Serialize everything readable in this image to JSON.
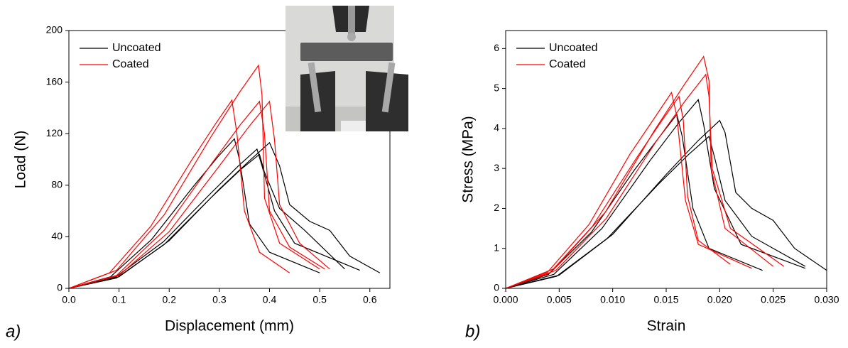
{
  "chart_data": [
    {
      "type": "line",
      "panel_label": "a)",
      "xlabel": "Displacement (mm)",
      "ylabel": "Load (N)",
      "xlim": [
        0,
        0.64
      ],
      "ylim": [
        0,
        200
      ],
      "xticks": [
        {
          "value": 0,
          "label": "0.0"
        },
        0.1,
        0.2,
        0.3,
        0.4,
        0.5,
        0.6
      ],
      "yticks": [
        0,
        40,
        80,
        120,
        160,
        200
      ],
      "legend": "upper left",
      "series": [
        {
          "name": "Uncoated",
          "color": "#000000",
          "curves": [
            {
              "x": [
                0,
                0.083,
                0.165,
                0.248,
                0.297,
                0.33,
                0.34,
                0.36,
                0.4,
                0.5
              ],
              "y": [
                0,
                9,
                38,
                79,
                102,
                116,
                100,
                50,
                28,
                12
              ]
            },
            {
              "x": [
                0,
                0.094,
                0.188,
                0.281,
                0.338,
                0.375,
                0.385,
                0.41,
                0.45,
                0.58
              ],
              "y": [
                0,
                9,
                36,
                73,
                95,
                108,
                95,
                60,
                35,
                14
              ]
            },
            {
              "x": [
                0,
                0.1,
                0.2,
                0.3,
                0.36,
                0.4,
                0.42,
                0.44,
                0.48,
                0.52,
                0.56,
                0.62
              ],
              "y": [
                0,
                9,
                37,
                77,
                99,
                113,
                95,
                65,
                52,
                45,
                25,
                12
              ]
            },
            {
              "x": [
                0,
                0.095,
                0.19,
                0.285,
                0.342,
                0.38,
                0.39,
                0.42,
                0.47,
                0.55
              ],
              "y": [
                0,
                8,
                34,
                71,
                92,
                104,
                90,
                62,
                45,
                15
              ]
            }
          ]
        },
        {
          "name": "Coated",
          "color": "#ff0000",
          "curves": [
            {
              "x": [
                0,
                0.081,
                0.163,
                0.244,
                0.293,
                0.325,
                0.335,
                0.35,
                0.38,
                0.44
              ],
              "y": [
                0,
                12,
                48,
                99,
                128,
                146,
                120,
                60,
                28,
                12
              ]
            },
            {
              "x": [
                0,
                0.095,
                0.19,
                0.284,
                0.34,
                0.378,
                0.385,
                0.39,
                0.42,
                0.5
              ],
              "y": [
                0,
                14,
                57,
                118,
                152,
                173,
                150,
                70,
                35,
                15
              ]
            },
            {
              "x": [
                0,
                0.095,
                0.19,
                0.285,
                0.342,
                0.38,
                0.39,
                0.4,
                0.44,
                0.51
              ],
              "y": [
                0,
                10,
                45,
                97,
                127,
                145,
                120,
                60,
                32,
                15
              ]
            },
            {
              "x": [
                0,
                0.1,
                0.2,
                0.3,
                0.36,
                0.4,
                0.41,
                0.42,
                0.46,
                0.52
              ],
              "y": [
                0,
                10,
                44,
                95,
                126,
                145,
                115,
                65,
                35,
                15
              ]
            }
          ]
        }
      ]
    },
    {
      "type": "line",
      "panel_label": "b)",
      "xlabel": "Strain",
      "ylabel": "Stress (MPa)",
      "xlim": [
        0,
        0.03
      ],
      "ylim": [
        0,
        6.45
      ],
      "xticks": [
        {
          "value": 0,
          "label": "0.000"
        },
        0.005,
        {
          "value": 0.01,
          "label": "0.010"
        },
        0.015,
        {
          "value": 0.02,
          "label": "0.020"
        },
        0.025,
        {
          "value": 0.03,
          "label": "0.030"
        }
      ],
      "yticks": [
        0,
        1,
        2,
        3,
        4,
        5,
        6
      ],
      "legend": "upper left",
      "series": [
        {
          "name": "Uncoated",
          "color": "#000000",
          "curves": [
            {
              "x": [
                0,
                0.004,
                0.008,
                0.012,
                0.0144,
                0.016,
                0.0165,
                0.0175,
                0.019,
                0.024
              ],
              "y": [
                0,
                0.35,
                1.4,
                2.95,
                3.8,
                4.35,
                3.8,
                2,
                1,
                0.45
              ]
            },
            {
              "x": [
                0,
                0.0045,
                0.009,
                0.0135,
                0.0162,
                0.018,
                0.0185,
                0.0195,
                0.022,
                0.028
              ],
              "y": [
                0,
                0.35,
                1.5,
                3.2,
                4.15,
                4.72,
                4.1,
                2.5,
                1.1,
                0.5
              ]
            },
            {
              "x": [
                0,
                0.005,
                0.01,
                0.015,
                0.018,
                0.02,
                0.0205,
                0.0215,
                0.023,
                0.025,
                0.027,
                0.03
              ],
              "y": [
                0,
                0.33,
                1.35,
                2.85,
                3.7,
                4.2,
                3.9,
                2.4,
                2,
                1.7,
                1,
                0.45
              ]
            },
            {
              "x": [
                0,
                0.00475,
                0.0095,
                0.01425,
                0.0171,
                0.019,
                0.0195,
                0.0205,
                0.023,
                0.028
              ],
              "y": [
                0,
                0.3,
                1.25,
                2.6,
                3.35,
                3.8,
                3.3,
                2.2,
                1.3,
                0.55
              ]
            }
          ]
        },
        {
          "name": "Coated",
          "color": "#ff0000",
          "curves": [
            {
              "x": [
                0,
                0.0039,
                0.0078,
                0.0116,
                0.014,
                0.0155,
                0.016,
                0.0168,
                0.018,
                0.023
              ],
              "y": [
                0,
                0.4,
                1.6,
                3.35,
                4.3,
                4.9,
                4.3,
                2.2,
                1.1,
                0.5
              ]
            },
            {
              "x": [
                0,
                0.0041,
                0.0081,
                0.0122,
                0.0146,
                0.0162,
                0.0166,
                0.017,
                0.018,
                0.021
              ],
              "y": [
                0,
                0.38,
                1.55,
                3.25,
                4.2,
                4.8,
                4.2,
                2.3,
                1.2,
                0.6
              ]
            },
            {
              "x": [
                0,
                0.0046,
                0.0093,
                0.0139,
                0.0167,
                0.0185,
                0.019,
                0.0192,
                0.0205,
                0.025
              ],
              "y": [
                0,
                0.5,
                1.9,
                3.95,
                5.1,
                5.8,
                5.2,
                3,
                1.5,
                0.55
              ]
            },
            {
              "x": [
                0,
                0.0047,
                0.0094,
                0.014,
                0.0168,
                0.0187,
                0.019,
                0.0193,
                0.021,
                0.026
              ],
              "y": [
                0,
                0.45,
                1.75,
                3.65,
                4.7,
                5.35,
                4.8,
                3,
                1.5,
                0.55
              ]
            }
          ]
        }
      ]
    }
  ]
}
